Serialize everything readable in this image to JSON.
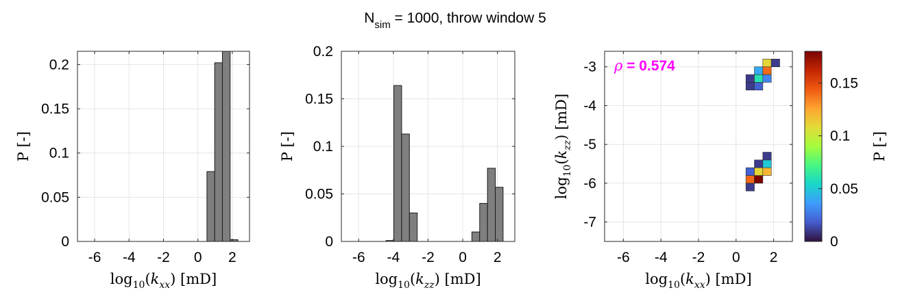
{
  "figure": {
    "title_main": "N",
    "title_sub": "sim",
    "title_rest": " = 1000, throw window 5"
  },
  "chart_data": [
    {
      "type": "bar",
      "panel": "left",
      "xlabel": "log10(kxx) [mD]",
      "xlabel_parts": {
        "log": "log",
        "sub": "10",
        "var": "k",
        "varsub": "xx",
        "unit": "[mD]"
      },
      "ylabel": "P [-]",
      "xlim": [
        -7,
        3
      ],
      "ylim": [
        0,
        0.215
      ],
      "xticks": [
        -6,
        -4,
        -2,
        0,
        2
      ],
      "xtick_labels": [
        "-6",
        "-4",
        "-2",
        "0",
        "2"
      ],
      "yticks": [
        0,
        0.05,
        0.1,
        0.15,
        0.2
      ],
      "ytick_labels": [
        "0",
        "0.05",
        "0.1",
        "0.15",
        "0.2"
      ],
      "grid": true,
      "bar_color": "#7f7f7f",
      "bin_width": 0.45,
      "bin_centers": [
        0.75,
        1.2,
        1.65,
        2.1
      ],
      "values": [
        0.079,
        0.202,
        0.215,
        0.002
      ]
    },
    {
      "type": "bar",
      "panel": "middle",
      "xlabel": "log10(kzz) [mD]",
      "xlabel_parts": {
        "log": "log",
        "sub": "10",
        "var": "k",
        "varsub": "zz",
        "unit": "[mD]"
      },
      "ylabel": "P [-]",
      "xlim": [
        -7,
        3
      ],
      "ylim": [
        0,
        0.2
      ],
      "xticks": [
        -6,
        -4,
        -2,
        0,
        2
      ],
      "xtick_labels": [
        "-6",
        "-4",
        "-2",
        "0",
        "2"
      ],
      "yticks": [
        0,
        0.05,
        0.1,
        0.15,
        0.2
      ],
      "ytick_labels": [
        "0",
        "0.05",
        "0.1",
        "0.15",
        "0.2"
      ],
      "grid": true,
      "bar_color": "#7f7f7f",
      "bin_width": 0.45,
      "bin_centers": [
        -4.2,
        -3.75,
        -3.3,
        -2.85,
        0.75,
        1.2,
        1.65,
        2.1
      ],
      "values": [
        0.001,
        0.164,
        0.113,
        0.03,
        0.01,
        0.04,
        0.077,
        0.057
      ],
      "second_group_values": [
        0.001,
        0.002
      ]
    },
    {
      "type": "heatmap",
      "panel": "right",
      "xlabel": "log10(kxx) [mD]",
      "xlabel_parts": {
        "log": "log",
        "sub": "10",
        "var": "k",
        "varsub": "xx",
        "unit": "[mD]"
      },
      "ylabel": "log10(kzz) [mD]",
      "ylabel_parts": {
        "log": "log",
        "sub": "10",
        "var": "k",
        "varsub": "zz",
        "unit": "[mD]"
      },
      "xlim": [
        -7,
        3
      ],
      "ylim": [
        -7.5,
        -2.6
      ],
      "xticks": [
        -6,
        -4,
        -2,
        0,
        2
      ],
      "xtick_labels": [
        "-6",
        "-4",
        "-2",
        "0",
        "2"
      ],
      "yticks": [
        -7,
        -6,
        -5,
        -4,
        -3
      ],
      "ytick_labels": [
        "-7",
        "-6",
        "-5",
        "-4",
        "-3"
      ],
      "grid": true,
      "annotation": {
        "symbol": "ρ",
        "text": " = 0.574",
        "color": "#ff00ff"
      },
      "cell_size_x": 0.45,
      "cell_size_y": 0.2,
      "colormap": "turbo",
      "cells": [
        {
          "x": 0.75,
          "y": -3.5,
          "v": 0.01
        },
        {
          "x": 1.2,
          "y": -3.5,
          "v": 0.02
        },
        {
          "x": 0.75,
          "y": -3.3,
          "v": 0.01
        },
        {
          "x": 1.2,
          "y": -3.3,
          "v": 0.06
        },
        {
          "x": 1.65,
          "y": -3.3,
          "v": 0.03
        },
        {
          "x": 1.2,
          "y": -3.1,
          "v": 0.04
        },
        {
          "x": 1.65,
          "y": -3.1,
          "v": 0.14
        },
        {
          "x": 1.65,
          "y": -2.9,
          "v": 0.11
        },
        {
          "x": 2.1,
          "y": -2.9,
          "v": 0.01
        },
        {
          "x": 0.75,
          "y": -6.1,
          "v": 0.01
        },
        {
          "x": 0.75,
          "y": -5.9,
          "v": 0.14
        },
        {
          "x": 1.2,
          "y": -5.9,
          "v": 0.18
        },
        {
          "x": 0.75,
          "y": -5.7,
          "v": 0.02
        },
        {
          "x": 1.2,
          "y": -5.7,
          "v": 0.11
        },
        {
          "x": 1.65,
          "y": -5.7,
          "v": 0.12
        },
        {
          "x": 1.2,
          "y": -5.5,
          "v": 0.01
        },
        {
          "x": 1.65,
          "y": -5.5,
          "v": 0.05
        },
        {
          "x": 1.65,
          "y": -5.3,
          "v": 0.01
        }
      ],
      "colorbar": {
        "label": "P [-]",
        "lim": [
          0,
          0.18
        ],
        "ticks": [
          0,
          0.05,
          0.1,
          0.15
        ],
        "tick_labels": [
          "0",
          "0.05",
          "0.1",
          "0.15"
        ]
      }
    }
  ]
}
